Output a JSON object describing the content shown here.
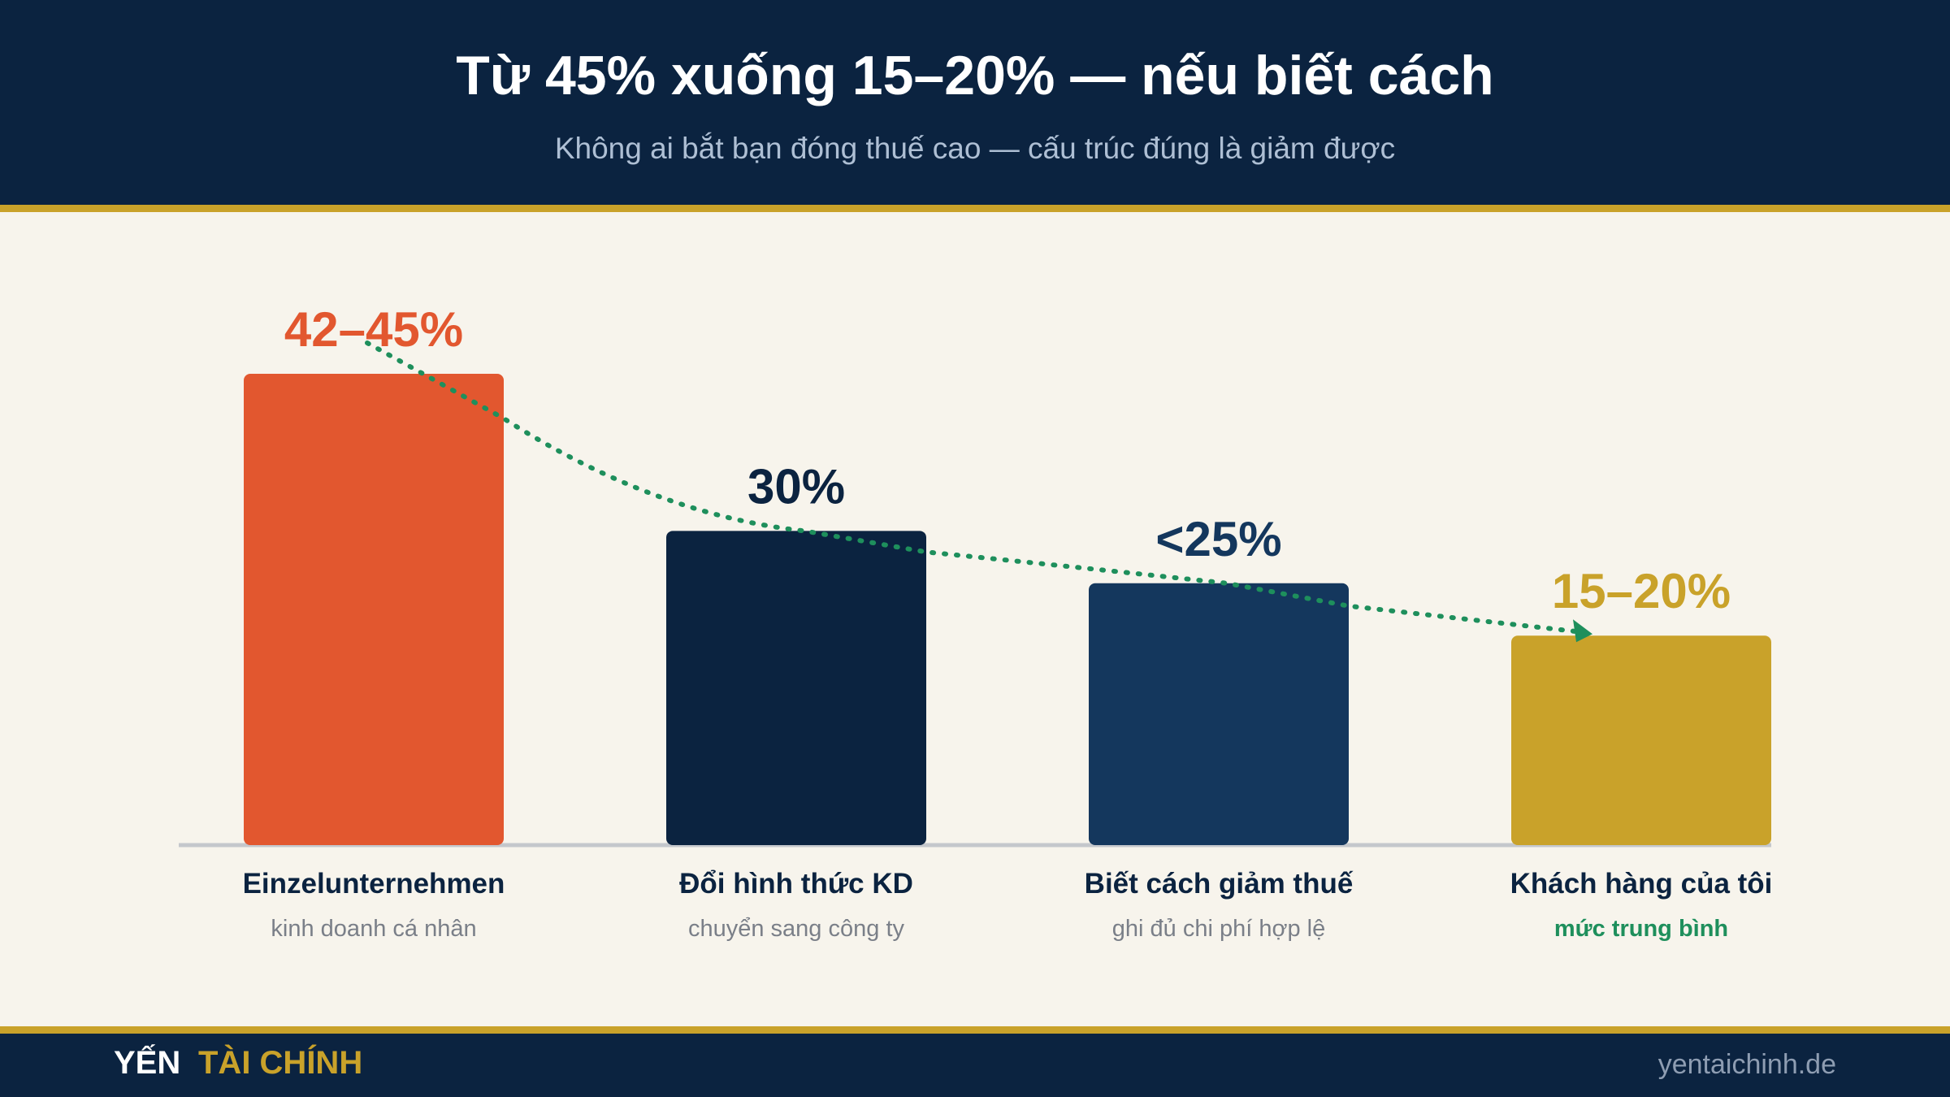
{
  "header": {
    "title": "Từ 45% xuống 15–20% — nếu biết cách",
    "subtitle": "Không ai bắt bạn đóng thuế cao — cấu trúc đúng là giảm được"
  },
  "colors": {
    "header_bg": "#0b2340",
    "gold": "#c9a22a",
    "background": "#f7f4ec",
    "trend_line": "#1e8f5c"
  },
  "chart_data": {
    "type": "bar",
    "categories": [
      "Einzelunternehmen",
      "Đổi hình thức KD",
      "Biết cách giảm thuế",
      "Khách hàng của tôi"
    ],
    "sublabels": [
      "kinh doanh cá nhân",
      "chuyển sang công ty",
      "ghi đủ chi phí hợp lệ",
      "mức trung bình"
    ],
    "values": [
      45,
      30,
      25,
      20
    ],
    "value_labels": [
      "42–45%",
      "30%",
      "<25%",
      "15–20%"
    ],
    "bar_colors": [
      "#e2572f",
      "#0b2340",
      "#14375d",
      "#c9a22a"
    ],
    "label_colors": [
      "#e2572f",
      "#0b2340",
      "#14375d",
      "#c9a22a"
    ],
    "sublabel_colors": [
      "#7a7f88",
      "#7a7f88",
      "#7a7f88",
      "#1e8f5c"
    ],
    "trend": "dotted arrow connecting bar tops, descending",
    "ylim": [
      0,
      45
    ],
    "grid": false,
    "legend": "none"
  },
  "footer": {
    "brand_first": "YẾN",
    "brand_second": "TÀI CHÍNH",
    "website": "yentaichinh.de"
  }
}
